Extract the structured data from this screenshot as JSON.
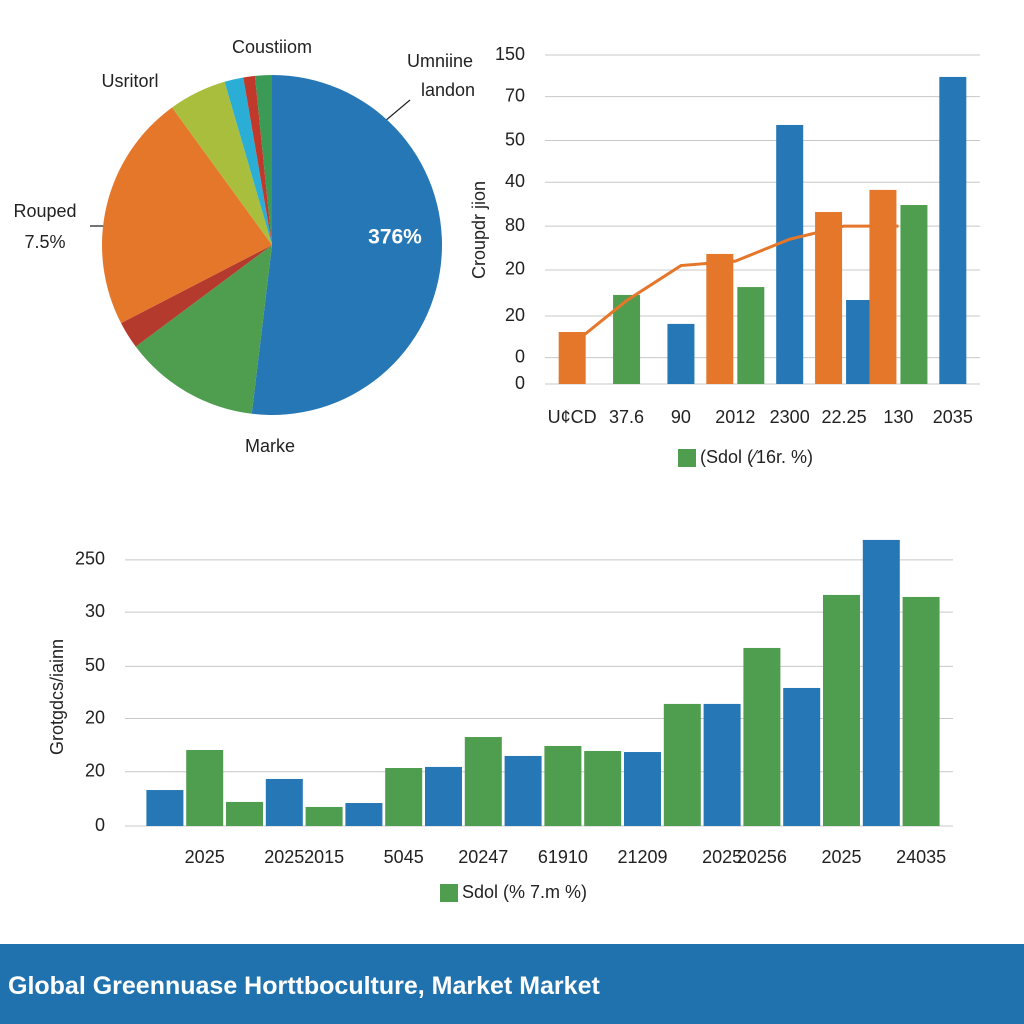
{
  "chart_data": [
    {
      "type": "pie",
      "values": [
        51.9,
        12.9,
        2.6,
        22.6,
        5.5,
        1.8,
        1.1,
        1.6
      ],
      "colors": [
        "#2677b5",
        "#4f9e4f",
        "#b43a2e",
        "#e5772a",
        "#a8be3c",
        "#2aaed6",
        "#c0392b",
        "#3a9a56"
      ],
      "annotations": [
        "Coustiiom",
        "Usritorl",
        "Umniine",
        "landon",
        "Rouped",
        "7.5%",
        "376%",
        "Marke"
      ]
    },
    {
      "type": "bar",
      "ylabel": "Croupdr jion",
      "categories": [
        "U¢CD",
        "37.6",
        "90",
        "2012",
        "2300",
        "22.25",
        "130",
        "2035"
      ],
      "series": [
        {
          "color": "#e5772a",
          "values": [
            23.7,
            null,
            null,
            59.3,
            null,
            78.4,
            88.5,
            null
          ]
        },
        {
          "name": "(Sdol (⁄16r. %)",
          "color": "#4f9e4f",
          "values": [
            null,
            40.6,
            null,
            44.2,
            null,
            null,
            81.6,
            null
          ]
        },
        {
          "color": "#2677b5",
          "values": [
            null,
            null,
            27.4,
            null,
            118.1,
            38.3,
            null,
            140
          ]
        },
        {
          "type": "line",
          "color": "#e5772a",
          "values": [
            18,
            38,
            54,
            56,
            66,
            72,
            72,
            null
          ]
        }
      ],
      "ylim": [
        0,
        150
      ],
      "yticks": [
        150,
        {
          "value": 131,
          "label": "70"
        },
        {
          "value": 111,
          "label": "50"
        },
        {
          "value": 92,
          "label": "40"
        },
        {
          "value": 72,
          "label": "80"
        },
        {
          "value": 52,
          "label": "20"
        },
        {
          "value": 31,
          "label": "20"
        },
        {
          "value": 12,
          "label": "0"
        },
        0
      ],
      "grid": true
    },
    {
      "type": "bar",
      "ylabel": "Grotgdcs/iainn",
      "categories": [
        null,
        "2025",
        null,
        "2025",
        "2015",
        null,
        "5045",
        null,
        "20247",
        null,
        "61910",
        null,
        "21209",
        null,
        "2025",
        "20256",
        null,
        "2025",
        null,
        "24035"
      ],
      "series": [
        {
          "color": "#2677b5",
          "values": [
            33.8,
            null,
            null,
            44.2,
            null,
            21.6,
            null,
            55.5,
            null,
            65.8,
            null,
            null,
            69.5,
            null,
            114.7,
            null,
            129.7,
            null,
            268.8,
            null
          ]
        },
        {
          "name": "Sdol (% 7.m %)",
          "color": "#4f9e4f",
          "values": [
            null,
            71.4,
            22.6,
            null,
            17.9,
            null,
            54.5,
            null,
            83.6,
            null,
            75.2,
            70.5,
            null,
            114.7,
            null,
            167.3,
            null,
            217.1,
            null,
            215.2
          ]
        }
      ],
      "ylim": [
        0,
        280
      ],
      "yticks": [
        250,
        {
          "value": 201,
          "label": "30"
        },
        {
          "value": 150,
          "label": "50"
        },
        {
          "value": 101,
          "label": "20"
        },
        {
          "value": 51,
          "label": "20"
        },
        0
      ],
      "grid": true
    }
  ],
  "footer": {
    "title": "Global Greennuase Horttboculture, Market Market"
  }
}
